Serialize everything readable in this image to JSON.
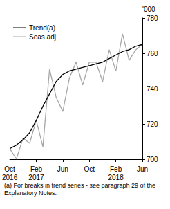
{
  "chart_data": {
    "type": "line",
    "categories": [
      "Oct\n2016",
      null,
      null,
      null,
      "Feb\n2017",
      null,
      null,
      null,
      "Jun",
      null,
      null,
      null,
      "Oct",
      null,
      null,
      null,
      "Feb\n2018",
      null,
      null,
      null,
      "Jun"
    ],
    "series": [
      {
        "name": "Trend(a)",
        "color": "#000000",
        "values": [
          706,
          708,
          711,
          715,
          722,
          730,
          737,
          744,
          748,
          750,
          751,
          752,
          753,
          754,
          755,
          757,
          759,
          761,
          762,
          764,
          765
        ]
      },
      {
        "name": "Seas adj.",
        "color": "#a6a6a6",
        "values": [
          706,
          700,
          712,
          709,
          722,
          707,
          751,
          735,
          727,
          746,
          755,
          742,
          755,
          755,
          744,
          762,
          750,
          771,
          756,
          762,
          765
        ]
      }
    ],
    "ylabel": "'000",
    "ylim": [
      700,
      780
    ],
    "yticks": [
      700,
      720,
      740,
      760,
      780
    ],
    "grid": false,
    "legend": "top-left",
    "marker": "none",
    "footnote": "(a) For breaks in trend series - see paragraph 29 of the Explanatory Notes."
  }
}
